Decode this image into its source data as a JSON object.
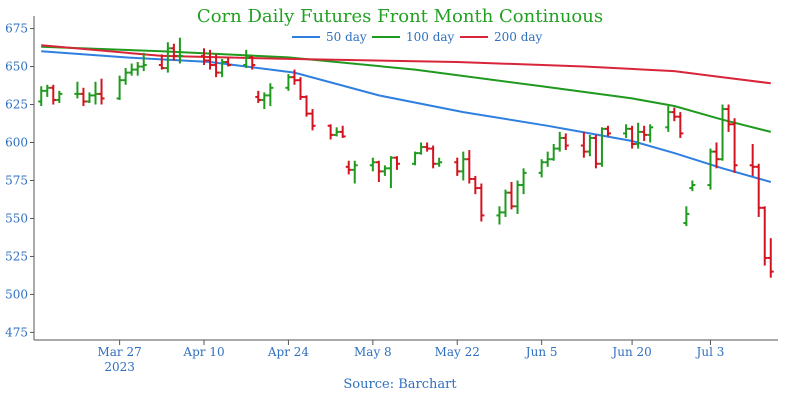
{
  "colors": {
    "title": "#22a022",
    "axis_text": "#2f6fbf",
    "up": "#1f9a1f",
    "down": "#d3131f",
    "ma50": "#2f7fe0",
    "ma100": "#1f9a1f",
    "ma200": "#d8253a",
    "axis_line": "#555555"
  },
  "chart_data": {
    "type": "ohlc",
    "title": "Corn Daily Futures Front Month Continuous",
    "source": "Source: Barchart",
    "ylim": [
      470,
      678
    ],
    "xlim": [
      "2023-03-14",
      "2023-07-13"
    ],
    "y_ticks": [
      475,
      500,
      525,
      550,
      575,
      600,
      625,
      650,
      675
    ],
    "x_ticks": [
      {
        "date": "2023-03-27",
        "label": "Mar 27",
        "sublabel": "2023"
      },
      {
        "date": "2023-04-10",
        "label": "Apr 10",
        "sublabel": ""
      },
      {
        "date": "2023-04-24",
        "label": "Apr 24",
        "sublabel": ""
      },
      {
        "date": "2023-05-08",
        "label": "May 8",
        "sublabel": ""
      },
      {
        "date": "2023-05-22",
        "label": "May 22",
        "sublabel": ""
      },
      {
        "date": "2023-06-05",
        "label": "Jun 5",
        "sublabel": ""
      },
      {
        "date": "2023-06-20",
        "label": "Jun 20",
        "sublabel": ""
      },
      {
        "date": "2023-07-03",
        "label": "Jul 3",
        "sublabel": ""
      }
    ],
    "legend": [
      {
        "name": "50 day",
        "color": "#2f7fe0"
      },
      {
        "name": "100 day",
        "color": "#1f9a1f"
      },
      {
        "name": "200 day",
        "color": "#d8253a"
      }
    ],
    "legend_position": "top-center",
    "grid": false,
    "series": [
      {
        "name": "50 day",
        "color": "#2f7fe0",
        "points": [
          [
            "2023-03-14",
            660
          ],
          [
            "2023-03-28",
            656
          ],
          [
            "2023-04-11",
            653
          ],
          [
            "2023-04-25",
            646
          ],
          [
            "2023-05-09",
            631
          ],
          [
            "2023-05-23",
            620
          ],
          [
            "2023-06-06",
            611
          ],
          [
            "2023-06-20",
            601
          ],
          [
            "2023-06-27",
            593
          ],
          [
            "2023-07-05",
            583
          ],
          [
            "2023-07-13",
            574
          ]
        ]
      },
      {
        "name": "100 day",
        "color": "#1f9a1f",
        "points": [
          [
            "2023-03-14",
            663
          ],
          [
            "2023-04-03",
            660
          ],
          [
            "2023-04-24",
            656
          ],
          [
            "2023-05-15",
            648
          ],
          [
            "2023-06-05",
            637
          ],
          [
            "2023-06-20",
            629
          ],
          [
            "2023-06-27",
            624
          ],
          [
            "2023-07-05",
            615
          ],
          [
            "2023-07-13",
            607
          ]
        ]
      },
      {
        "name": "200 day",
        "color": "#d8253a",
        "points": [
          [
            "2023-03-14",
            664
          ],
          [
            "2023-04-03",
            657
          ],
          [
            "2023-04-24",
            655
          ],
          [
            "2023-05-22",
            653
          ],
          [
            "2023-06-12",
            650
          ],
          [
            "2023-06-27",
            647
          ],
          [
            "2023-07-05",
            643
          ],
          [
            "2023-07-13",
            639
          ]
        ]
      }
    ],
    "ohlc": [
      [
        "2023-03-14",
        627,
        637,
        624,
        634
      ],
      [
        "2023-03-15",
        634,
        638,
        630,
        636
      ],
      [
        "2023-03-16",
        636,
        638,
        625,
        628
      ],
      [
        "2023-03-17",
        628,
        634,
        626,
        632
      ],
      [
        "2023-03-20",
        632,
        640,
        629,
        632
      ],
      [
        "2023-03-21",
        632,
        636,
        624,
        627
      ],
      [
        "2023-03-22",
        627,
        633,
        626,
        631
      ],
      [
        "2023-03-23",
        631,
        640,
        625,
        632
      ],
      [
        "2023-03-24",
        632,
        642,
        625,
        629
      ],
      [
        "2023-03-27",
        629,
        644,
        628,
        641
      ],
      [
        "2023-03-28",
        641,
        649,
        638,
        646
      ],
      [
        "2023-03-29",
        646,
        652,
        644,
        648
      ],
      [
        "2023-03-30",
        648,
        653,
        644,
        650
      ],
      [
        "2023-03-31",
        650,
        659,
        647,
        651
      ],
      [
        "2023-04-03",
        651,
        658,
        648,
        649
      ],
      [
        "2023-04-04",
        649,
        666,
        646,
        662
      ],
      [
        "2023-04-05",
        662,
        665,
        654,
        657
      ],
      [
        "2023-04-06",
        657,
        669,
        652,
        657
      ],
      [
        "2023-04-10",
        657,
        662,
        651,
        654
      ],
      [
        "2023-04-11",
        654,
        661,
        648,
        651
      ],
      [
        "2023-04-12",
        651,
        658,
        643,
        646
      ],
      [
        "2023-04-13",
        646,
        655,
        643,
        653
      ],
      [
        "2023-04-14",
        653,
        656,
        650,
        651
      ],
      [
        "2023-04-17",
        651,
        661,
        649,
        656
      ],
      [
        "2023-04-18",
        656,
        657,
        648,
        651
      ],
      [
        "2023-04-19",
        630,
        634,
        626,
        628
      ],
      [
        "2023-04-20",
        628,
        633,
        622,
        631
      ],
      [
        "2023-04-21",
        631,
        639,
        624,
        636
      ],
      [
        "2023-04-24",
        636,
        645,
        634,
        643
      ],
      [
        "2023-04-25",
        643,
        648,
        638,
        641
      ],
      [
        "2023-04-26",
        641,
        643,
        628,
        630
      ],
      [
        "2023-04-27",
        630,
        631,
        617,
        619
      ],
      [
        "2023-04-28",
        619,
        622,
        608,
        611
      ],
      [
        "2023-05-01",
        611,
        612,
        602,
        605
      ],
      [
        "2023-05-02",
        605,
        610,
        604,
        607
      ],
      [
        "2023-05-03",
        607,
        611,
        603,
        604
      ],
      [
        "2023-05-04",
        584,
        588,
        579,
        582
      ],
      [
        "2023-05-05",
        582,
        588,
        573,
        585
      ],
      [
        "2023-05-08",
        585,
        590,
        581,
        587
      ],
      [
        "2023-05-09",
        587,
        588,
        574,
        581
      ],
      [
        "2023-05-10",
        581,
        585,
        578,
        583
      ],
      [
        "2023-05-11",
        583,
        591,
        570,
        590
      ],
      [
        "2023-05-12",
        590,
        591,
        582,
        586
      ],
      [
        "2023-05-15",
        586,
        594,
        585,
        593
      ],
      [
        "2023-05-16",
        593,
        600,
        592,
        597
      ],
      [
        "2023-05-17",
        597,
        600,
        594,
        596
      ],
      [
        "2023-05-18",
        596,
        598,
        583,
        586
      ],
      [
        "2023-05-19",
        586,
        590,
        584,
        587
      ],
      [
        "2023-05-22",
        587,
        590,
        578,
        581
      ],
      [
        "2023-05-23",
        581,
        594,
        575,
        589
      ],
      [
        "2023-05-24",
        589,
        595,
        573,
        576
      ],
      [
        "2023-05-25",
        576,
        578,
        566,
        570
      ],
      [
        "2023-05-26",
        570,
        573,
        548,
        552
      ],
      [
        "2023-05-29",
        552,
        558,
        546,
        554
      ],
      [
        "2023-05-30",
        554,
        569,
        551,
        567
      ],
      [
        "2023-05-31",
        567,
        574,
        556,
        558
      ],
      [
        "2023-06-01",
        558,
        575,
        553,
        572
      ],
      [
        "2023-06-02",
        572,
        583,
        566,
        580
      ],
      [
        "2023-06-05",
        580,
        589,
        577,
        587
      ],
      [
        "2023-06-06",
        587,
        594,
        584,
        589
      ],
      [
        "2023-06-07",
        589,
        599,
        588,
        596
      ],
      [
        "2023-06-08",
        596,
        607,
        594,
        603
      ],
      [
        "2023-06-09",
        603,
        606,
        595,
        598
      ],
      [
        "2023-06-12",
        598,
        607,
        590,
        594
      ],
      [
        "2023-06-13",
        594,
        605,
        591,
        603
      ],
      [
        "2023-06-14",
        603,
        605,
        583,
        586
      ],
      [
        "2023-06-15",
        586,
        610,
        584,
        609
      ],
      [
        "2023-06-16",
        609,
        611,
        604,
        606
      ],
      [
        "2023-06-19",
        606,
        612,
        603,
        609
      ],
      [
        "2023-06-20",
        609,
        611,
        596,
        599
      ],
      [
        "2023-06-21",
        599,
        613,
        596,
        607
      ],
      [
        "2023-06-22",
        607,
        611,
        601,
        605
      ],
      [
        "2023-06-23",
        605,
        612,
        600,
        610
      ],
      [
        "2023-06-26",
        610,
        624,
        607,
        620
      ],
      [
        "2023-06-27",
        620,
        623,
        614,
        617
      ],
      [
        "2023-06-28",
        617,
        620,
        603,
        606
      ],
      [
        "2023-06-29",
        547,
        558,
        545,
        553
      ],
      [
        "2023-06-30",
        570,
        575,
        568,
        572
      ],
      [
        "2023-07-03",
        572,
        596,
        569,
        594
      ],
      [
        "2023-07-04",
        594,
        600,
        583,
        589
      ],
      [
        "2023-07-05",
        589,
        625,
        588,
        622
      ],
      [
        "2023-07-06",
        622,
        625,
        607,
        612
      ],
      [
        "2023-07-07",
        612,
        616,
        580,
        585
      ],
      [
        "2023-07-10",
        585,
        599,
        578,
        584
      ],
      [
        "2023-07-11",
        584,
        586,
        551,
        557
      ],
      [
        "2023-07-12",
        557,
        558,
        519,
        524
      ],
      [
        "2023-07-13",
        524,
        537,
        511,
        515
      ]
    ]
  }
}
